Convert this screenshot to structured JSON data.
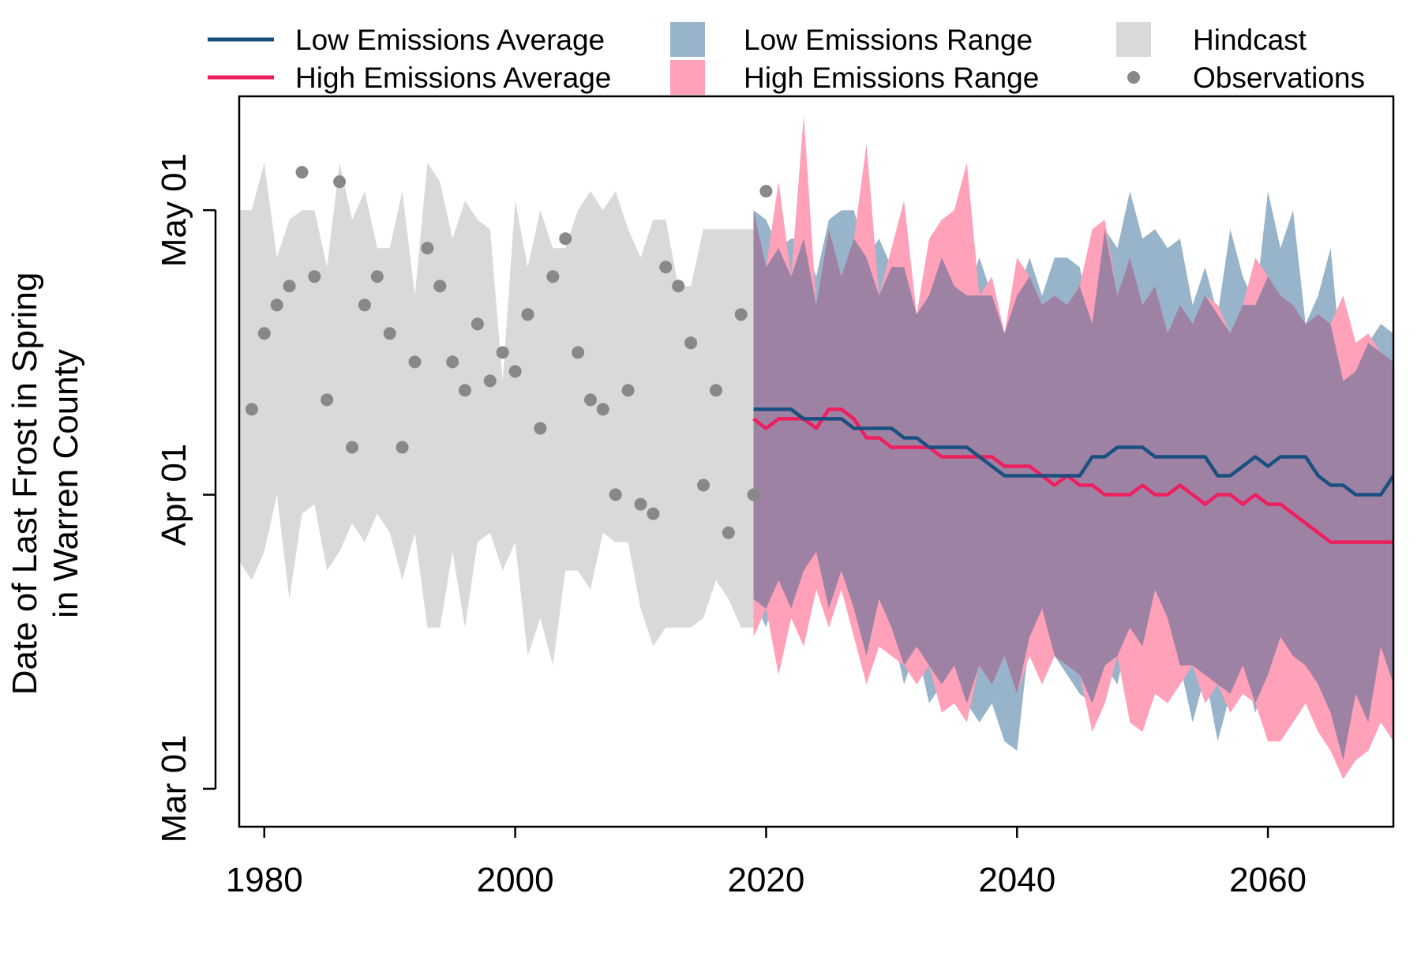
{
  "chart_data": {
    "type": "line",
    "title": "",
    "xlabel": "",
    "ylabel_lines": [
      "Date of Last Frost in Spring",
      "in Warren County"
    ],
    "xlim": [
      1978,
      2070
    ],
    "x_ticks": [
      1980,
      2000,
      2020,
      2040,
      2060
    ],
    "y_ticks": [
      {
        "value": "Mar 01",
        "label": "Mar 01"
      },
      {
        "value": "Apr 01",
        "label": "Apr 01"
      },
      {
        "value": "May 01",
        "label": "May 01"
      }
    ],
    "ylim": [
      "Feb 25",
      "May 13"
    ],
    "legend": {
      "placement": "top",
      "entries": [
        {
          "key": "low_avg",
          "label": "Low Emissions Average",
          "kind": "line",
          "color": "#1b4f80"
        },
        {
          "key": "high_avg",
          "label": "High Emissions Average",
          "kind": "line",
          "color": "#ee1f5f"
        },
        {
          "key": "low_range",
          "label": "Low Emissions Range",
          "kind": "box",
          "color": "#97b4cb"
        },
        {
          "key": "high_range",
          "label": "High Emissions Range",
          "kind": "box",
          "color": "#fea1b9"
        },
        {
          "key": "hindcast",
          "label": "Hindcast",
          "kind": "box",
          "color": "#d9d9d9"
        },
        {
          "key": "observations",
          "label": "Observations",
          "kind": "point",
          "color": "#888888"
        }
      ]
    },
    "colors": {
      "hindcast": "#d9d9d9",
      "low_range": "#97b4cb",
      "high_range": "#fea1b9",
      "overlap": "#9e82a4",
      "low_avg": "#1b4f80",
      "high_avg": "#ee1f5f",
      "observations": "#888888"
    },
    "hindcast": {
      "x": [
        1978,
        1979,
        1980,
        1981,
        1982,
        1983,
        1984,
        1985,
        1986,
        1987,
        1988,
        1989,
        1990,
        1991,
        1992,
        1993,
        1994,
        1995,
        1996,
        1997,
        1998,
        1999,
        2000,
        2001,
        2002,
        2003,
        2004,
        2005,
        2006,
        2007,
        2008,
        2009,
        2010,
        2011,
        2012,
        2013,
        2014,
        2015,
        2016,
        2017,
        2018,
        2019
      ],
      "upper": [
        "May 01",
        "May 01",
        "May 06",
        "Apr 26",
        "Apr 30",
        "May 01",
        "May 01",
        "Apr 25",
        "May 06",
        "Apr 30",
        "May 03",
        "Apr 27",
        "Apr 27",
        "May 03",
        "Apr 22",
        "May 06",
        "May 04",
        "Apr 28",
        "May 02",
        "Apr 30",
        "Apr 29",
        "Apr 13",
        "May 02",
        "Apr 25",
        "May 01",
        "Apr 27",
        "Apr 27",
        "May 01",
        "May 03",
        "May 01",
        "May 03",
        "Apr 29",
        "Apr 26",
        "Apr 30",
        "Apr 30",
        "Apr 23",
        "Apr 23",
        "Apr 29",
        "Apr 29",
        "Apr 29",
        "Apr 29",
        "Apr 29"
      ],
      "lower": [
        "Mar 25",
        "Mar 23",
        "Mar 26",
        "Apr 01",
        "Mar 21",
        "Mar 30",
        "Mar 31",
        "Mar 24",
        "Mar 26",
        "Mar 29",
        "Mar 27",
        "Mar 30",
        "Mar 28",
        "Mar 23",
        "Mar 28",
        "Mar 18",
        "Mar 18",
        "Mar 26",
        "Mar 18",
        "Mar 27",
        "Mar 28",
        "Mar 24",
        "Mar 27",
        "Mar 15",
        "Mar 19",
        "Mar 14",
        "Mar 24",
        "Mar 24",
        "Mar 22",
        "Mar 28",
        "Mar 27",
        "Mar 27",
        "Mar 20",
        "Mar 16",
        "Mar 18",
        "Mar 18",
        "Mar 18",
        "Mar 19",
        "Mar 23",
        "Mar 21",
        "Mar 18",
        "Mar 18"
      ]
    },
    "observations": {
      "x": [
        1979,
        1980,
        1981,
        1982,
        1983,
        1984,
        1985,
        1986,
        1987,
        1988,
        1989,
        1990,
        1991,
        1992,
        1993,
        1994,
        1995,
        1996,
        1997,
        1998,
        1999,
        2000,
        2001,
        2002,
        2003,
        2004,
        2005,
        2006,
        2007,
        2008,
        2009,
        2010,
        2011,
        2012,
        2013,
        2014,
        2015,
        2016,
        2017,
        2018,
        2019,
        2020
      ],
      "y": [
        "Apr 10",
        "Apr 18",
        "Apr 21",
        "Apr 23",
        "May 05",
        "Apr 24",
        "Apr 11",
        "May 04",
        "Apr 06",
        "Apr 21",
        "Apr 24",
        "Apr 18",
        "Apr 06",
        "Apr 15",
        "Apr 27",
        "Apr 23",
        "Apr 15",
        "Apr 12",
        "Apr 19",
        "Apr 13",
        "Apr 16",
        "Apr 14",
        "Apr 20",
        "Apr 08",
        "Apr 24",
        "Apr 28",
        "Apr 16",
        "Apr 11",
        "Apr 10",
        "Apr 01",
        "Apr 12",
        "Mar 31",
        "Mar 30",
        "Apr 25",
        "Apr 23",
        "Apr 17",
        "Apr 02",
        "Apr 12",
        "Mar 28",
        "Apr 20",
        "Apr 01",
        "May 03"
      ]
    },
    "low_emissions": {
      "x": [
        2019,
        2020,
        2021,
        2022,
        2023,
        2024,
        2025,
        2026,
        2027,
        2028,
        2029,
        2030,
        2031,
        2032,
        2033,
        2034,
        2035,
        2036,
        2037,
        2038,
        2039,
        2040,
        2041,
        2042,
        2043,
        2044,
        2045,
        2046,
        2047,
        2048,
        2049,
        2050,
        2051,
        2052,
        2053,
        2054,
        2055,
        2056,
        2057,
        2058,
        2059,
        2060,
        2061,
        2062,
        2063,
        2064,
        2065,
        2066,
        2067,
        2068,
        2069,
        2070
      ],
      "upper": [
        "May 01",
        "Apr 30",
        "Apr 27",
        "Apr 28",
        "Apr 28",
        "Apr 24",
        "Apr 30",
        "May 01",
        "May 01",
        "Apr 26",
        "Apr 28",
        "Apr 25",
        "Apr 25",
        "Apr 20",
        "Apr 22",
        "Apr 26",
        "Apr 23",
        "Apr 22",
        "Apr 26",
        "Apr 22",
        "Apr 18",
        "Apr 22",
        "Apr 26",
        "Apr 22",
        "Apr 26",
        "Apr 26",
        "Apr 25",
        "Apr 19",
        "Apr 29",
        "Apr 27",
        "May 03",
        "Apr 28",
        "Apr 29",
        "Apr 27",
        "Apr 28",
        "Apr 21",
        "Apr 25",
        "Apr 20",
        "Apr 29",
        "Apr 24",
        "Apr 21",
        "May 03",
        "Apr 27",
        "May 01",
        "Apr 19",
        "Apr 22",
        "Apr 27",
        "Apr 13",
        "Apr 14",
        "Apr 17",
        "Apr 19",
        "Apr 18"
      ],
      "lower": [
        "Mar 21",
        "Mar 18",
        "Mar 23",
        "Mar 20",
        "Mar 24",
        "Mar 26",
        "Mar 20",
        "Mar 24",
        "Mar 20",
        "Mar 15",
        "Mar 21",
        "Mar 18",
        "Mar 12",
        "Mar 16",
        "Mar 10",
        "Mar 12",
        "Mar 14",
        "Mar 10",
        "Mar 08",
        "Mar 10",
        "Mar 06",
        "Mar 05",
        "Mar 17",
        "Mar 20",
        "Mar 15",
        "Mar 13",
        "Mar 11",
        "Mar 10",
        "Mar 14",
        "Mar 12",
        "Mar 18",
        "Mar 16",
        "Mar 22",
        "Mar 19",
        "Mar 14",
        "Mar 08",
        "Mar 13",
        "Mar 06",
        "Mar 11",
        "Mar 14",
        "Mar 09",
        "Mar 13",
        "Mar 17",
        "Mar 15",
        "Mar 14",
        "Mar 12",
        "Mar 09",
        "Mar 04",
        "Mar 11",
        "Mar 08",
        "Mar 16",
        "Mar 12"
      ],
      "average": [
        "Apr 10",
        "Apr 10",
        "Apr 10",
        "Apr 10",
        "Apr 09",
        "Apr 09",
        "Apr 09",
        "Apr 09",
        "Apr 08",
        "Apr 08",
        "Apr 08",
        "Apr 08",
        "Apr 07",
        "Apr 07",
        "Apr 06",
        "Apr 06",
        "Apr 06",
        "Apr 06",
        "Apr 05",
        "Apr 04",
        "Apr 03",
        "Apr 03",
        "Apr 03",
        "Apr 03",
        "Apr 03",
        "Apr 03",
        "Apr 03",
        "Apr 05",
        "Apr 05",
        "Apr 06",
        "Apr 06",
        "Apr 06",
        "Apr 05",
        "Apr 05",
        "Apr 05",
        "Apr 05",
        "Apr 05",
        "Apr 03",
        "Apr 03",
        "Apr 04",
        "Apr 05",
        "Apr 04",
        "Apr 05",
        "Apr 05",
        "Apr 05",
        "Apr 03",
        "Apr 02",
        "Apr 02",
        "Apr 01",
        "Apr 01",
        "Apr 01",
        "Apr 03"
      ]
    },
    "high_emissions": {
      "x": [
        2019,
        2020,
        2021,
        2022,
        2023,
        2024,
        2025,
        2026,
        2027,
        2028,
        2029,
        2030,
        2031,
        2032,
        2033,
        2034,
        2035,
        2036,
        2037,
        2038,
        2039,
        2040,
        2041,
        2042,
        2043,
        2044,
        2045,
        2046,
        2047,
        2048,
        2049,
        2050,
        2051,
        2052,
        2053,
        2054,
        2055,
        2056,
        2057,
        2058,
        2059,
        2060,
        2061,
        2062,
        2063,
        2064,
        2065,
        2066,
        2067,
        2068,
        2069,
        2070
      ],
      "upper": [
        "May 01",
        "Apr 25",
        "May 04",
        "Apr 24",
        "May 11",
        "Apr 21",
        "Apr 29",
        "Apr 24",
        "Apr 28",
        "May 08",
        "Apr 22",
        "Apr 27",
        "May 02",
        "Apr 20",
        "Apr 28",
        "Apr 30",
        "May 01",
        "May 06",
        "Apr 22",
        "Apr 24",
        "Apr 18",
        "Apr 26",
        "Apr 24",
        "Apr 21",
        "Apr 22",
        "Apr 21",
        "Apr 23",
        "Apr 29",
        "Apr 30",
        "Apr 22",
        "Apr 26",
        "Apr 21",
        "Apr 23",
        "Apr 18",
        "Apr 21",
        "Apr 19",
        "Apr 22",
        "Apr 21",
        "Apr 18",
        "Apr 21",
        "Apr 26",
        "Apr 24",
        "Apr 22",
        "Apr 21",
        "Apr 19",
        "Apr 20",
        "Apr 19",
        "Apr 22",
        "Apr 17",
        "Apr 18",
        "Apr 16",
        "Apr 15"
      ],
      "lower": [
        "Mar 17",
        "Mar 20",
        "Mar 13",
        "Mar 19",
        "Mar 16",
        "Mar 22",
        "Mar 18",
        "Mar 22",
        "Mar 17",
        "Mar 12",
        "Mar 16",
        "Mar 15",
        "Mar 14",
        "Mar 12",
        "Mar 14",
        "Mar 09",
        "Mar 10",
        "Mar 08",
        "Mar 14",
        "Mar 12",
        "Mar 15",
        "Mar 11",
        "Mar 15",
        "Mar 12",
        "Mar 15",
        "Mar 14",
        "Mar 13",
        "Mar 07",
        "Mar 10",
        "Mar 15",
        "Mar 08",
        "Mar 07",
        "Mar 11",
        "Mar 10",
        "Mar 12",
        "Mar 14",
        "Mar 10",
        "Mar 12",
        "Mar 09",
        "Mar 11",
        "Mar 10",
        "Mar 06",
        "Mar 06",
        "Mar 08",
        "Mar 10",
        "Mar 07",
        "Mar 05",
        "Mar 02",
        "Mar 04",
        "Mar 05",
        "Mar 08",
        "Mar 06"
      ],
      "average": [
        "Apr 09",
        "Apr 08",
        "Apr 09",
        "Apr 09",
        "Apr 09",
        "Apr 08",
        "Apr 10",
        "Apr 10",
        "Apr 09",
        "Apr 07",
        "Apr 07",
        "Apr 06",
        "Apr 06",
        "Apr 06",
        "Apr 06",
        "Apr 05",
        "Apr 05",
        "Apr 05",
        "Apr 05",
        "Apr 05",
        "Apr 04",
        "Apr 04",
        "Apr 04",
        "Apr 03",
        "Apr 02",
        "Apr 03",
        "Apr 02",
        "Apr 02",
        "Apr 01",
        "Apr 01",
        "Apr 01",
        "Apr 02",
        "Apr 01",
        "Apr 01",
        "Apr 02",
        "Apr 01",
        "Mar 31",
        "Apr 01",
        "Apr 01",
        "Mar 31",
        "Apr 01",
        "Mar 31",
        "Mar 31",
        "Mar 30",
        "Mar 29",
        "Mar 28",
        "Mar 27",
        "Mar 27",
        "Mar 27",
        "Mar 27",
        "Mar 27",
        "Mar 27"
      ]
    }
  }
}
